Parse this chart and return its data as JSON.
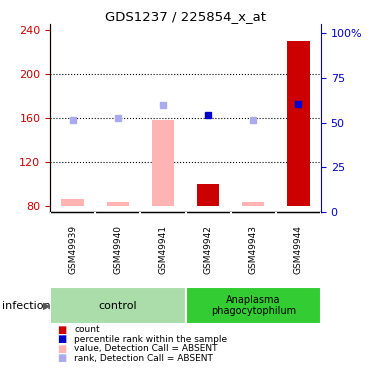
{
  "title": "GDS1237 / 225854_x_at",
  "samples": [
    "GSM49939",
    "GSM49940",
    "GSM49941",
    "GSM49942",
    "GSM49943",
    "GSM49944"
  ],
  "ylim_left": [
    75,
    245
  ],
  "ylim_right": [
    0,
    105
  ],
  "yticks_left": [
    80,
    120,
    160,
    200,
    240
  ],
  "yticks_right": [
    0,
    25,
    50,
    75,
    100
  ],
  "yticklabels_right": [
    "0",
    "25",
    "50",
    "75",
    "100%"
  ],
  "bar_bottom": 80,
  "red_bars_values": [
    null,
    null,
    null,
    100,
    null,
    230
  ],
  "pink_bars_values": [
    87,
    84,
    158,
    null,
    84,
    null
  ],
  "blue_sq_values": [
    null,
    null,
    null,
    163,
    null,
    173
  ],
  "lblue_sq_values": [
    158,
    160,
    172,
    null,
    158,
    null
  ],
  "red_color": "#cc0000",
  "pink_color": "#ffb3b3",
  "blue_color": "#0000cc",
  "lblue_color": "#aaaaee",
  "left_axis_color": "#cc0000",
  "right_axis_color": "#0000cc",
  "dotted_lines": [
    120,
    160,
    200
  ],
  "sample_area_color": "#cccccc",
  "ctrl_color": "#aaddaa",
  "ana_color": "#33cc33",
  "legend_items": [
    {
      "label": "count",
      "color": "#cc0000"
    },
    {
      "label": "percentile rank within the sample",
      "color": "#0000cc"
    },
    {
      "label": "value, Detection Call = ABSENT",
      "color": "#ffb3b3"
    },
    {
      "label": "rank, Detection Call = ABSENT",
      "color": "#aaaaee"
    }
  ]
}
